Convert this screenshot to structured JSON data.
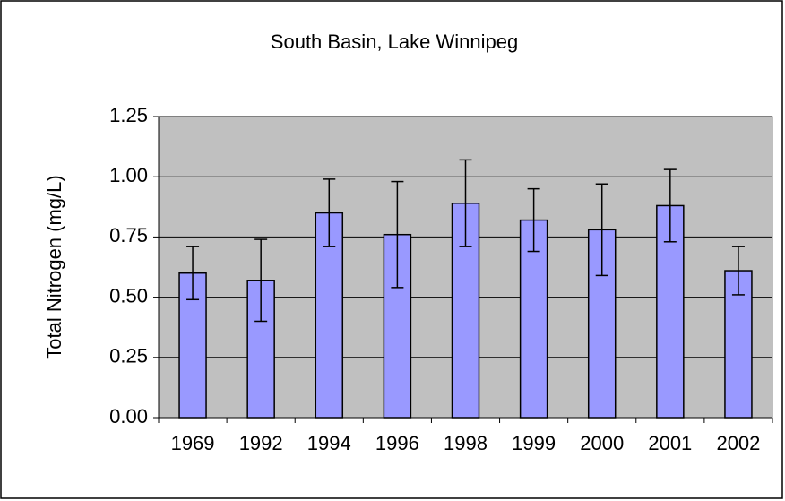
{
  "chart_data": {
    "type": "bar",
    "title": "South Basin, Lake Winnipeg",
    "y_label": "Total Nitrogen (mg/L)",
    "categories": [
      "1969",
      "1992",
      "1994",
      "1996",
      "1998",
      "1999",
      "2000",
      "2001",
      "2002"
    ],
    "values": [
      0.6,
      0.57,
      0.85,
      0.76,
      0.89,
      0.82,
      0.78,
      0.88,
      0.61
    ],
    "errors": [
      0.11,
      0.17,
      0.14,
      0.22,
      0.18,
      0.13,
      0.19,
      0.15,
      0.1
    ],
    "color": "#9999ff",
    "plot_background": "#c0c0c0",
    "ylim": [
      0,
      1.25
    ],
    "yticks": [
      {
        "value": 0,
        "label": "0.00"
      },
      {
        "value": 0.25,
        "label": "0.25"
      },
      {
        "value": 0.5,
        "label": "0.50"
      },
      {
        "value": 0.75,
        "label": "0.75"
      },
      {
        "value": 1,
        "label": "1.00"
      },
      {
        "value": 1.25,
        "label": "1.25"
      }
    ],
    "grid": true
  }
}
